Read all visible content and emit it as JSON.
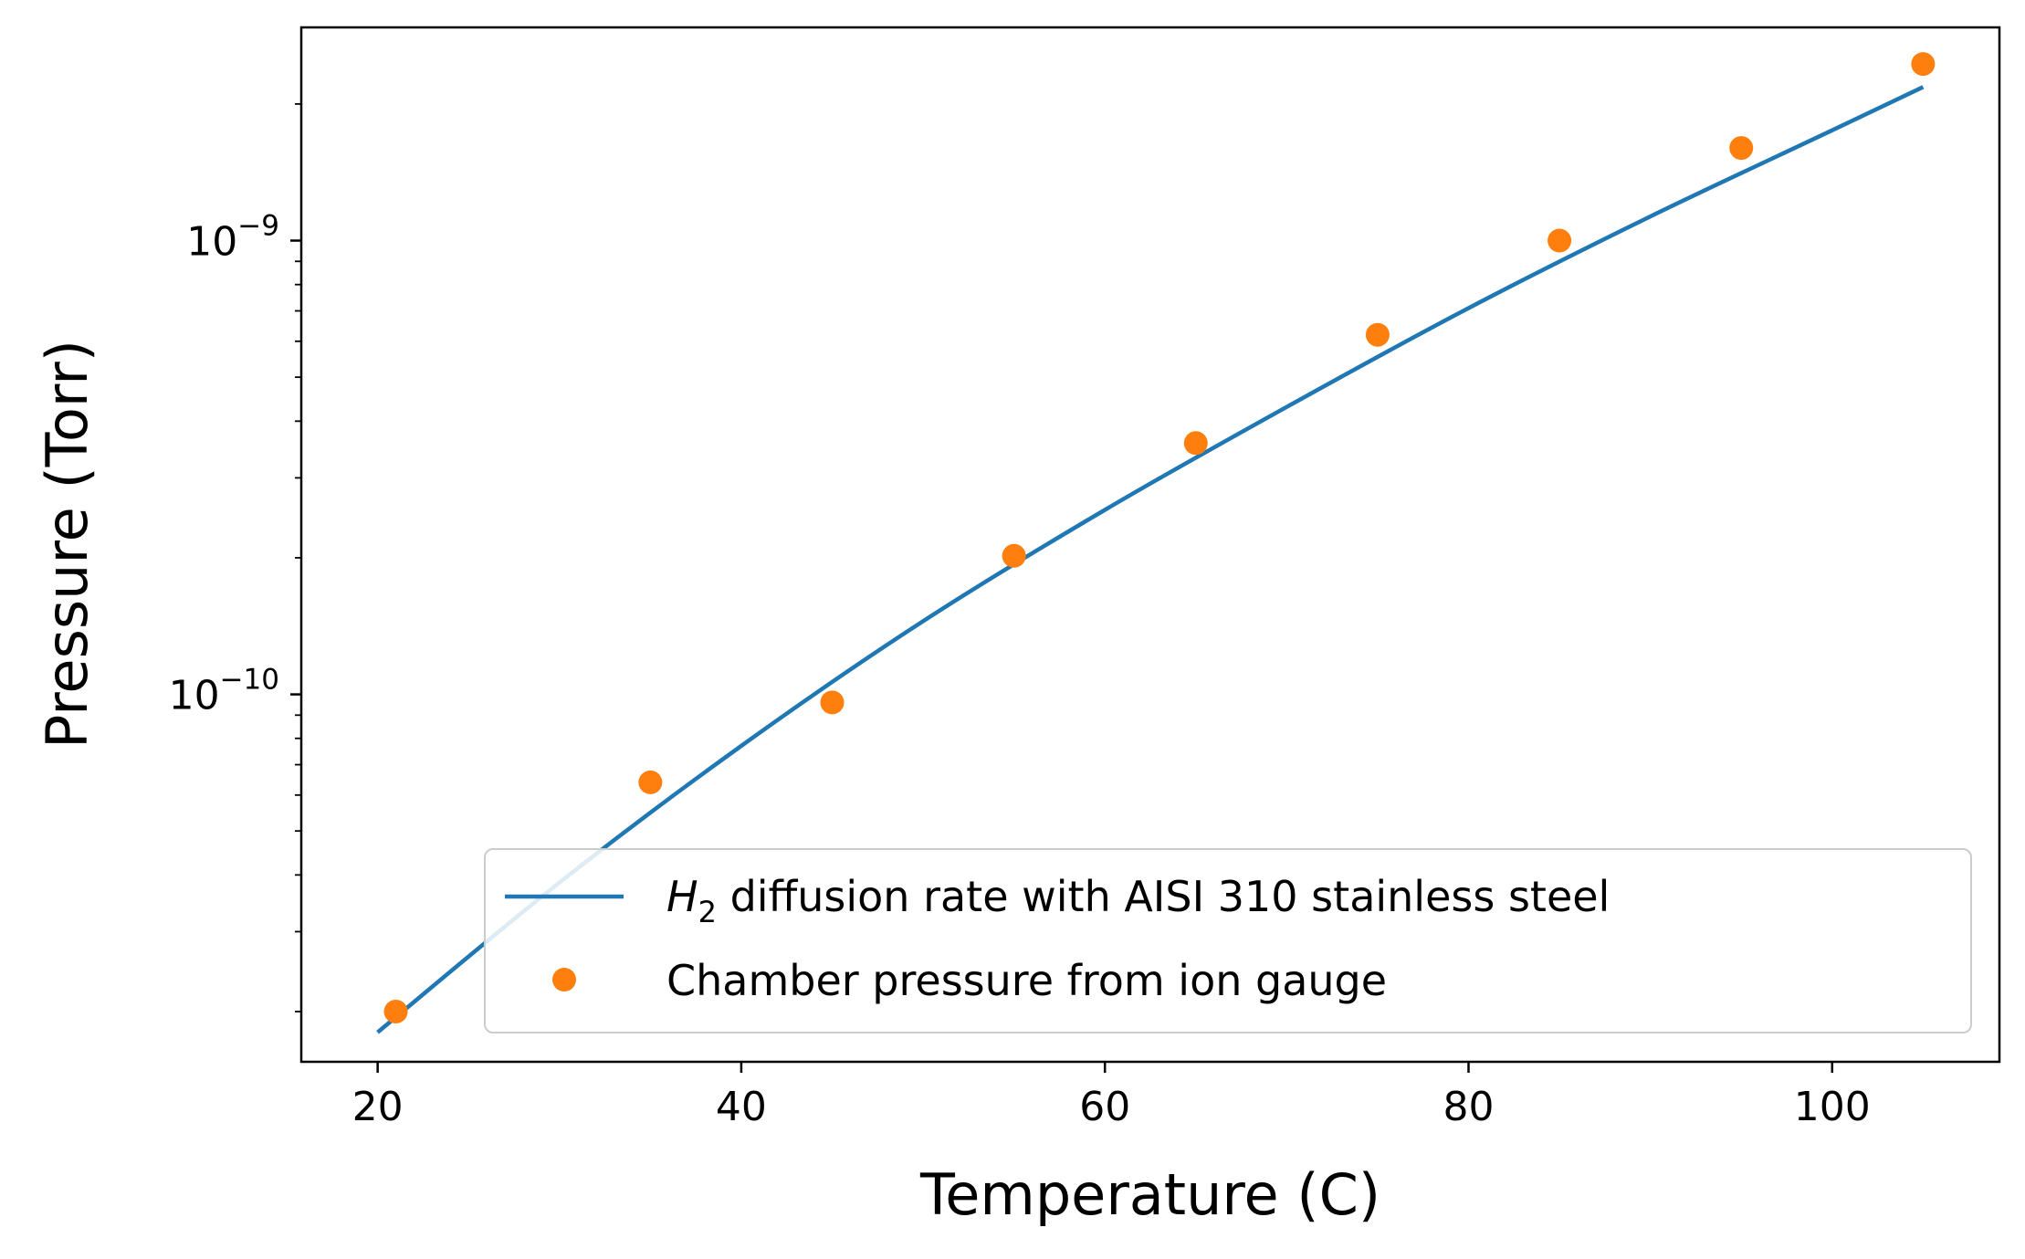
{
  "chart_data": {
    "type": "line",
    "xlabel": "Temperature (C)",
    "ylabel": "Pressure (Torr)",
    "xlim": [
      15.8,
      109.2
    ],
    "ylim": [
      1.55e-11,
      2.95e-09
    ],
    "y_scale": "log",
    "grid": false,
    "legend_placement": "lower-right",
    "x_ticks": [
      20,
      40,
      60,
      80,
      100
    ],
    "y_ticks": [
      {
        "value": 1e-10,
        "base": "10",
        "exp": "−10"
      },
      {
        "value": 1e-09,
        "base": "10",
        "exp": "−9"
      }
    ],
    "series": [
      {
        "name_italic": "H",
        "name_sub": "2",
        "name_rest": " diffusion rate with AISI 310 stainless steel",
        "kind": "line",
        "color": "#1f77b4",
        "x": [
          20,
          30,
          40,
          50,
          60,
          70,
          80,
          90,
          100,
          105
        ],
        "y": [
          1.8e-11,
          3.85e-11,
          7.7e-11,
          1.45e-10,
          2.55e-10,
          4.3e-10,
          7.1e-10,
          1.13e-09,
          1.75e-09,
          2.18e-09
        ]
      },
      {
        "name": "Chamber pressure from ion gauge",
        "kind": "scatter",
        "color": "#ff7f0e",
        "x": [
          21,
          35,
          45,
          55,
          65,
          75,
          85,
          95,
          105
        ],
        "y": [
          2e-11,
          6.4e-11,
          9.6e-11,
          2.02e-10,
          3.58e-10,
          6.2e-10,
          1e-09,
          1.6e-09,
          2.45e-09
        ]
      }
    ]
  }
}
